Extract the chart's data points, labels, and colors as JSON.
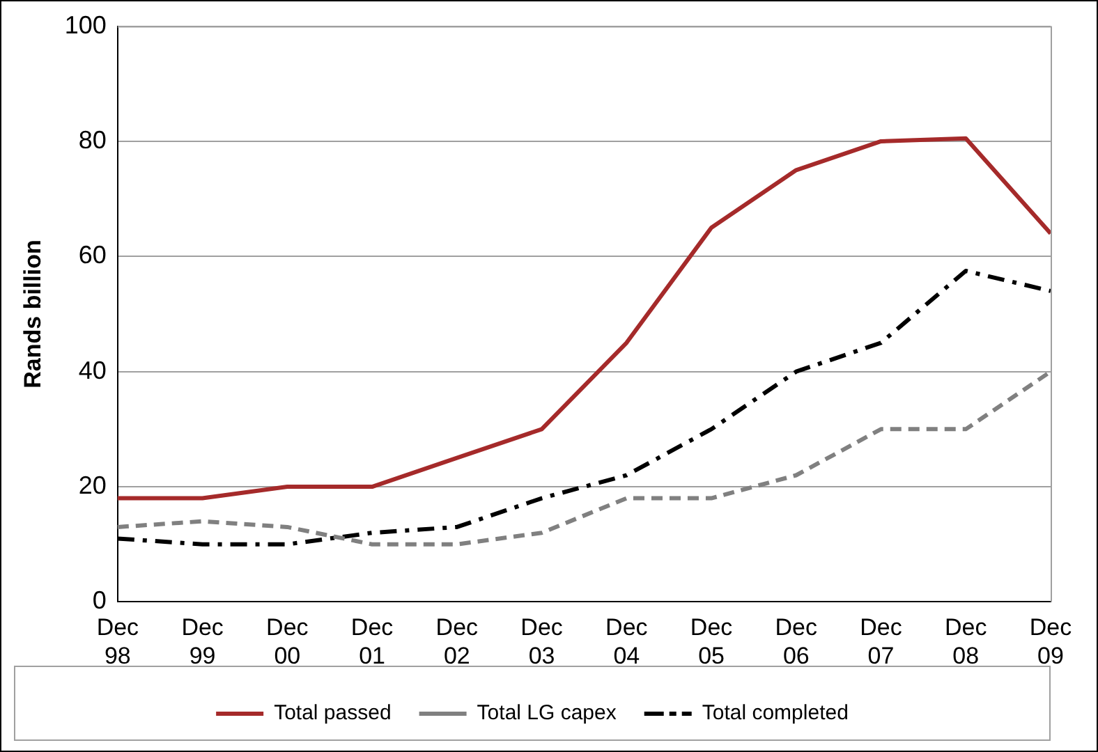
{
  "chart_data": {
    "type": "line",
    "ylabel": "Rands billion",
    "categories": [
      "Dec 98",
      "Dec 99",
      "Dec 00",
      "Dec 01",
      "Dec 02",
      "Dec 03",
      "Dec 04",
      "Dec 05",
      "Dec 06",
      "Dec 07",
      "Dec 08",
      "Dec 09"
    ],
    "series": [
      {
        "name": "Total passed",
        "color": "#a52a2a",
        "line_style": "solid",
        "values": [
          18,
          18,
          20,
          20,
          25,
          30,
          45,
          65,
          75,
          80,
          80.5,
          64
        ]
      },
      {
        "name": "Total LG capex",
        "color": "#808080",
        "line_style": "dashed",
        "values": [
          13,
          14,
          13,
          10,
          10,
          12,
          18,
          18,
          22,
          30,
          30,
          40
        ]
      },
      {
        "name": "Total completed",
        "color": "#000000",
        "line_style": "dashdot",
        "values": [
          11,
          10,
          10,
          12,
          13,
          18,
          22,
          30,
          40,
          45,
          57.5,
          54
        ]
      }
    ],
    "ylim": [
      0,
      100
    ],
    "yticks": [
      0,
      20,
      40,
      60,
      80,
      100
    ],
    "grid": "y",
    "legend": "bottom",
    "marker": "none"
  }
}
